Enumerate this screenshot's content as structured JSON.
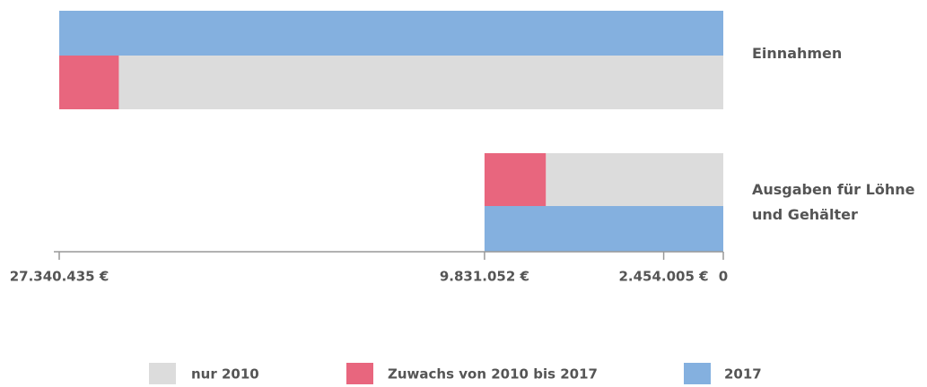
{
  "chart_data": {
    "type": "reversed-bar",
    "categories": [
      "Einnahmen",
      "Ausgaben für Löhne und Gehälter"
    ],
    "series": [
      {
        "name": "nur 2010",
        "color": "#dcdcdc",
        "values": [
          24886430,
          7306000
        ]
      },
      {
        "name": "Zuwachs von 2010 bis 2017",
        "color": "#e8667e",
        "values": [
          2454005,
          2525000
        ]
      },
      {
        "name": "2017",
        "color": "#84b0df",
        "values": [
          27340435,
          9831052
        ]
      }
    ],
    "xlim": [
      0,
      27340435
    ],
    "xticks": [
      {
        "value": 27340435,
        "label": "27.340.435 €"
      },
      {
        "value": 9831052,
        "label": "9.831.052 €"
      },
      {
        "value": 2454005,
        "label": "2.454.005 €"
      },
      0
    ]
  }
}
